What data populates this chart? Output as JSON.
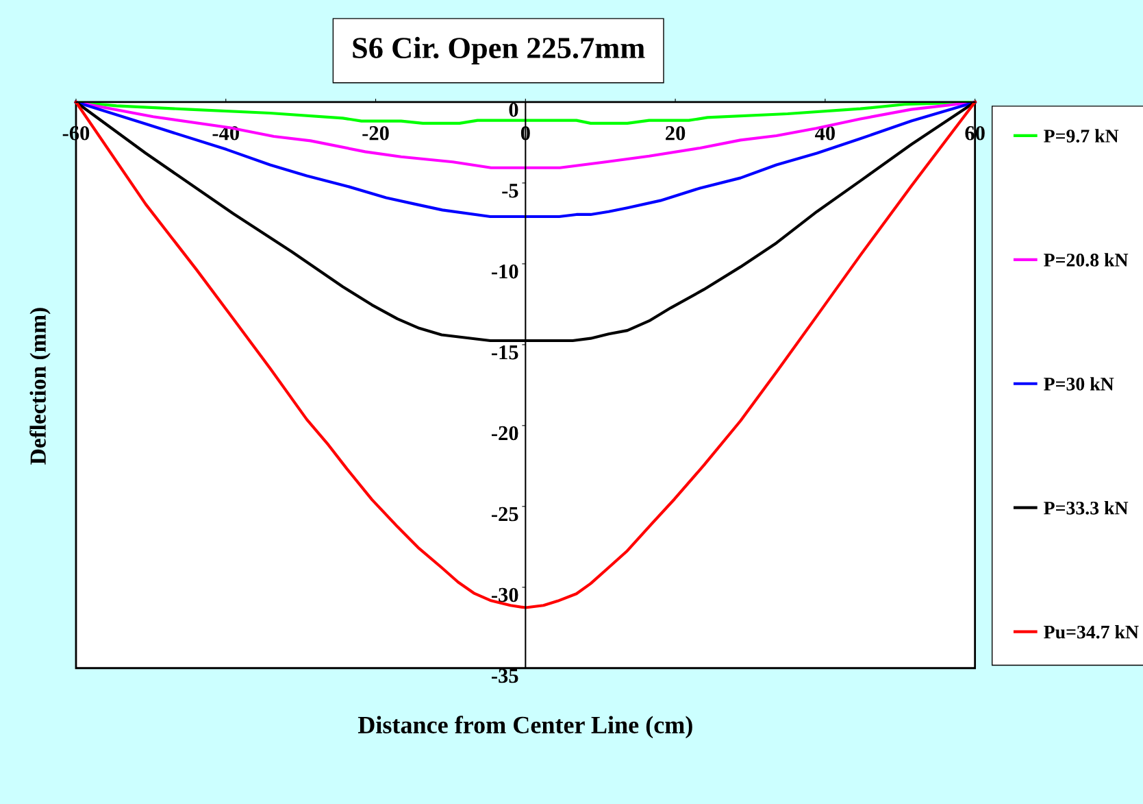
{
  "chart_data": {
    "type": "line",
    "title": "S6 Cir. Open 225.7mm",
    "xlabel": "Distance from Center Line (cm)",
    "ylabel": "Deflection (mm)",
    "xlim": [
      -60,
      60
    ],
    "ylim": [
      -35,
      0
    ],
    "xticks": [
      -60,
      -40,
      -20,
      0,
      20,
      40,
      60
    ],
    "yticks": [
      -35,
      -30,
      -25,
      -20,
      -15,
      -10,
      -5,
      0
    ],
    "grid": false,
    "legend": "right",
    "marker": "none",
    "line_style": "solid",
    "series": [
      {
        "name": "P=9.7 kN",
        "color": "#00ff00",
        "x": [
          -60,
          -54.6,
          -44.8,
          -34.1,
          -24.4,
          -21.9,
          -16.6,
          -13.7,
          -8.8,
          -6.4,
          6.8,
          8.7,
          13.6,
          16.5,
          21.8,
          24.3,
          35.0,
          44.7,
          50.6,
          60
        ],
        "values": [
          0,
          -0.23,
          -0.45,
          -0.68,
          -0.99,
          -1.17,
          -1.17,
          -1.31,
          -1.31,
          -1.13,
          -1.13,
          -1.31,
          -1.31,
          -1.13,
          -1.13,
          -0.95,
          -0.72,
          -0.41,
          -0.14,
          0
        ]
      },
      {
        "name": "P=20.8 kN",
        "color": "#ff00ff",
        "x": [
          -60,
          -49.7,
          -39.5,
          -33.6,
          -28.7,
          -21.4,
          -16.6,
          -9.7,
          -4.6,
          4.6,
          10.7,
          16.5,
          23.3,
          28.7,
          33.5,
          38.8,
          44.7,
          51.5,
          60
        ],
        "values": [
          0,
          -0.9,
          -1.58,
          -2.12,
          -2.39,
          -3.07,
          -3.38,
          -3.7,
          -4.06,
          -4.06,
          -3.7,
          -3.34,
          -2.84,
          -2.35,
          -2.08,
          -1.62,
          -1.04,
          -0.45,
          0
        ]
      },
      {
        "name": "P=30 kN",
        "color": "#0000ff",
        "x": [
          -60,
          -50.7,
          -39.9,
          -34.1,
          -29.2,
          -23.9,
          -18.6,
          -14.7,
          -11.1,
          -4.7,
          4.5,
          6.8,
          8.7,
          11.1,
          13.6,
          18.0,
          23.3,
          28.7,
          33.5,
          38.9,
          44.7,
          51.5,
          60
        ],
        "values": [
          0,
          -1.35,
          -2.93,
          -3.88,
          -4.56,
          -5.19,
          -5.91,
          -6.31,
          -6.67,
          -7.08,
          -7.08,
          -6.95,
          -6.95,
          -6.77,
          -6.54,
          -6.09,
          -5.32,
          -4.69,
          -3.88,
          -3.16,
          -2.26,
          -1.17,
          0
        ]
      },
      {
        "name": "P=33.3 kN",
        "color": "#000000",
        "x": [
          -60,
          -50.7,
          -39.0,
          -31.2,
          -24.4,
          -20.5,
          -17.1,
          -14.2,
          -11.2,
          -4.7,
          6.3,
          8.7,
          11.1,
          13.6,
          16.5,
          19.4,
          23.8,
          28.7,
          33.5,
          38.9,
          44.7,
          51.5,
          60
        ],
        "values": [
          0,
          -3.16,
          -6.9,
          -9.25,
          -11.41,
          -12.54,
          -13.4,
          -13.98,
          -14.39,
          -14.75,
          -14.75,
          -14.61,
          -14.34,
          -14.12,
          -13.53,
          -12.72,
          -11.59,
          -10.19,
          -8.71,
          -6.77,
          -4.87,
          -2.62,
          0
        ]
      },
      {
        "name": "Pu=34.7 kN",
        "color": "#ff0000",
        "x": [
          -60,
          -50.7,
          -43.9,
          -39.0,
          -34.1,
          -29.2,
          -26.3,
          -23.9,
          -20.5,
          -17.1,
          -14.2,
          -11.2,
          -9.0,
          -6.9,
          -4.7,
          -2.0,
          0,
          2.4,
          4.3,
          6.8,
          8.7,
          11.1,
          13.6,
          16.5,
          19.9,
          23.8,
          28.7,
          33.5,
          38.9,
          44.7,
          51.5,
          60
        ],
        "values": [
          0,
          -6.31,
          -10.37,
          -13.4,
          -16.46,
          -19.62,
          -21.2,
          -22.64,
          -24.58,
          -26.25,
          -27.6,
          -28.78,
          -29.68,
          -30.36,
          -30.81,
          -31.12,
          -31.26,
          -31.12,
          -30.85,
          -30.4,
          -29.77,
          -28.78,
          -27.74,
          -26.25,
          -24.54,
          -22.46,
          -19.71,
          -16.69,
          -13.22,
          -9.47,
          -5.19,
          0
        ]
      }
    ]
  }
}
